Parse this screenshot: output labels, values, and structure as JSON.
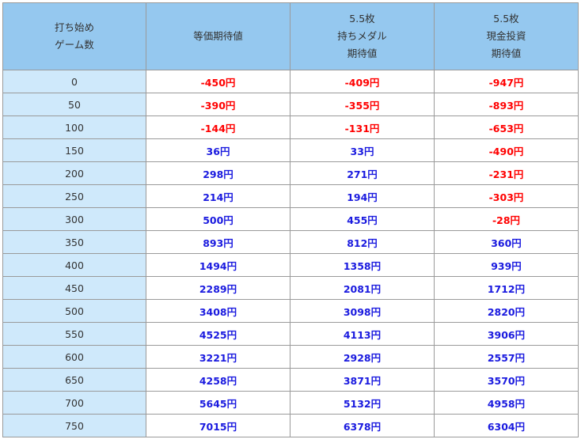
{
  "table": {
    "headers": [
      {
        "line1": "打ち始め",
        "line2": "ゲーム数",
        "line3": ""
      },
      {
        "line1": "",
        "line2": "等価期待値",
        "line3": ""
      },
      {
        "line1": "5.5枚",
        "line2": "持ちメダル",
        "line3": "期待値"
      },
      {
        "line1": "5.5枚",
        "line2": "現金投資",
        "line3": "期待値"
      }
    ],
    "rows": [
      {
        "games": "0",
        "equal": "-450円",
        "medal": "-409円",
        "cash": "-947円"
      },
      {
        "games": "50",
        "equal": "-390円",
        "medal": "-355円",
        "cash": "-893円"
      },
      {
        "games": "100",
        "equal": "-144円",
        "medal": "-131円",
        "cash": "-653円"
      },
      {
        "games": "150",
        "equal": "36円",
        "medal": "33円",
        "cash": "-490円"
      },
      {
        "games": "200",
        "equal": "298円",
        "medal": "271円",
        "cash": "-231円"
      },
      {
        "games": "250",
        "equal": "214円",
        "medal": "194円",
        "cash": "-303円"
      },
      {
        "games": "300",
        "equal": "500円",
        "medal": "455円",
        "cash": "-28円"
      },
      {
        "games": "350",
        "equal": "893円",
        "medal": "812円",
        "cash": "360円"
      },
      {
        "games": "400",
        "equal": "1494円",
        "medal": "1358円",
        "cash": "939円"
      },
      {
        "games": "450",
        "equal": "2289円",
        "medal": "2081円",
        "cash": "1712円"
      },
      {
        "games": "500",
        "equal": "3408円",
        "medal": "3098円",
        "cash": "2820円"
      },
      {
        "games": "550",
        "equal": "4525円",
        "medal": "4113円",
        "cash": "3906円"
      },
      {
        "games": "600",
        "equal": "3221円",
        "medal": "2928円",
        "cash": "2557円"
      },
      {
        "games": "650",
        "equal": "4258円",
        "medal": "3871円",
        "cash": "3570円"
      },
      {
        "games": "700",
        "equal": "5645円",
        "medal": "5132円",
        "cash": "4958円"
      },
      {
        "games": "750",
        "equal": "7015円",
        "medal": "6378円",
        "cash": "6304円"
      }
    ]
  },
  "colors": {
    "header_bg": "#95c8ef",
    "first_col_bg": "#cfe9fb",
    "negative": "#ff0000",
    "positive": "#1a1adf",
    "border": "#9a9a9a"
  }
}
